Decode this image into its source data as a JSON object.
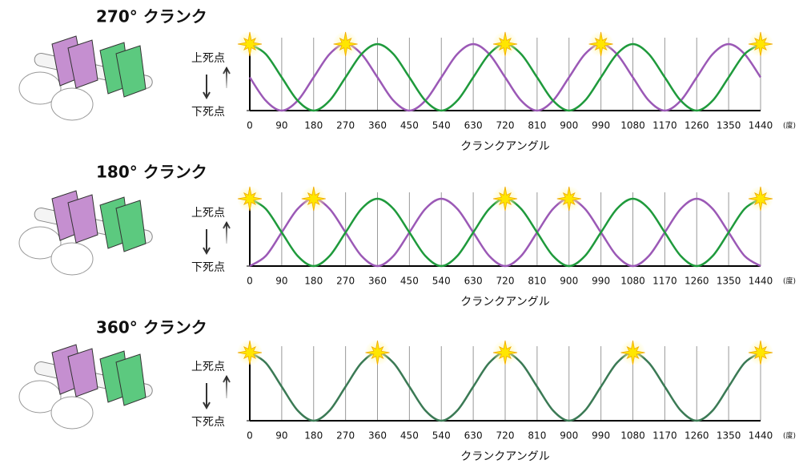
{
  "chart_data": [
    {
      "type": "line",
      "title": "270° クランク",
      "xlabel": "クランクアングル",
      "xunit": "(度)",
      "x": [
        0,
        45,
        90,
        135,
        180,
        225,
        270,
        315,
        360,
        405,
        450,
        495,
        540,
        585,
        630,
        675,
        720,
        765,
        810,
        855,
        900,
        945,
        990,
        1035,
        1080,
        1125,
        1170,
        1215,
        1260,
        1305,
        1350,
        1395,
        1440
      ],
      "series": [
        {
          "color": "#9b59b6",
          "values": [
            0.5,
            0.15,
            0,
            0.15,
            0.5,
            0.85,
            1,
            0.85,
            0.5,
            0.15,
            0,
            0.15,
            0.5,
            0.85,
            1,
            0.85,
            0.5,
            0.15,
            0,
            0.15,
            0.5,
            0.85,
            1,
            0.85,
            0.5,
            0.15,
            0,
            0.15,
            0.5,
            0.85,
            1,
            0.85,
            0.5
          ]
        },
        {
          "color": "#1f9a3c",
          "values": [
            1,
            0.85,
            0.5,
            0.15,
            0,
            0.15,
            0.5,
            0.85,
            1,
            0.85,
            0.5,
            0.15,
            0,
            0.15,
            0.5,
            0.85,
            1,
            0.85,
            0.5,
            0.15,
            0,
            0.15,
            0.5,
            0.85,
            1,
            0.85,
            0.5,
            0.15,
            0,
            0.15,
            0.5,
            0.85,
            1
          ]
        }
      ],
      "markers_x": [
        0,
        270,
        720,
        990,
        1440
      ],
      "xlim": [
        0,
        1440
      ],
      "xticks": [
        0,
        90,
        180,
        270,
        360,
        450,
        540,
        630,
        720,
        810,
        900,
        990,
        1080,
        1170,
        1260,
        1350,
        1440
      ],
      "ylim": [
        0,
        1
      ],
      "yticks": [
        {
          "value": 1,
          "label": "上死点"
        },
        {
          "value": 0,
          "label": "下死点"
        }
      ],
      "grid": true
    },
    {
      "type": "line",
      "title": "180° クランク",
      "xlabel": "クランクアングル",
      "xunit": "(度)",
      "x": [
        0,
        45,
        90,
        135,
        180,
        225,
        270,
        315,
        360,
        405,
        450,
        495,
        540,
        585,
        630,
        675,
        720,
        765,
        810,
        855,
        900,
        945,
        990,
        1035,
        1080,
        1125,
        1170,
        1215,
        1260,
        1305,
        1350,
        1395,
        1440
      ],
      "series": [
        {
          "color": "#9b59b6",
          "values": [
            0,
            0.15,
            0.5,
            0.85,
            1,
            0.85,
            0.5,
            0.15,
            0,
            0.15,
            0.5,
            0.85,
            1,
            0.85,
            0.5,
            0.15,
            0,
            0.15,
            0.5,
            0.85,
            1,
            0.85,
            0.5,
            0.15,
            0,
            0.15,
            0.5,
            0.85,
            1,
            0.85,
            0.5,
            0.15,
            0
          ]
        },
        {
          "color": "#1f9a3c",
          "values": [
            1,
            0.85,
            0.5,
            0.15,
            0,
            0.15,
            0.5,
            0.85,
            1,
            0.85,
            0.5,
            0.15,
            0,
            0.15,
            0.5,
            0.85,
            1,
            0.85,
            0.5,
            0.15,
            0,
            0.15,
            0.5,
            0.85,
            1,
            0.85,
            0.5,
            0.15,
            0,
            0.15,
            0.5,
            0.85,
            1
          ]
        }
      ],
      "markers_x": [
        0,
        180,
        720,
        900,
        1440
      ],
      "xlim": [
        0,
        1440
      ],
      "xticks": [
        0,
        90,
        180,
        270,
        360,
        450,
        540,
        630,
        720,
        810,
        900,
        990,
        1080,
        1170,
        1260,
        1350,
        1440
      ],
      "ylim": [
        0,
        1
      ],
      "yticks": [
        {
          "value": 1,
          "label": "上死点"
        },
        {
          "value": 0,
          "label": "下死点"
        }
      ],
      "grid": true
    },
    {
      "type": "line",
      "title": "360° クランク",
      "xlabel": "クランクアングル",
      "xunit": "(度)",
      "x": [
        0,
        45,
        90,
        135,
        180,
        225,
        270,
        315,
        360,
        405,
        450,
        495,
        540,
        585,
        630,
        675,
        720,
        765,
        810,
        855,
        900,
        945,
        990,
        1035,
        1080,
        1125,
        1170,
        1215,
        1260,
        1305,
        1350,
        1395,
        1440
      ],
      "series": [
        {
          "color": "#3b7a55",
          "values": [
            1,
            0.85,
            0.5,
            0.15,
            0,
            0.15,
            0.5,
            0.85,
            1,
            0.85,
            0.5,
            0.15,
            0,
            0.15,
            0.5,
            0.85,
            1,
            0.85,
            0.5,
            0.15,
            0,
            0.15,
            0.5,
            0.85,
            1,
            0.85,
            0.5,
            0.15,
            0,
            0.15,
            0.5,
            0.85,
            1
          ]
        }
      ],
      "markers_x": [
        0,
        360,
        720,
        1080,
        1440
      ],
      "xlim": [
        0,
        1440
      ],
      "xticks": [
        0,
        90,
        180,
        270,
        360,
        450,
        540,
        630,
        720,
        810,
        900,
        990,
        1080,
        1170,
        1260,
        1350,
        1440
      ],
      "ylim": [
        0,
        1
      ],
      "yticks": [
        {
          "value": 1,
          "label": "上死点"
        },
        {
          "value": 0,
          "label": "下死点"
        }
      ],
      "grid": true
    }
  ]
}
